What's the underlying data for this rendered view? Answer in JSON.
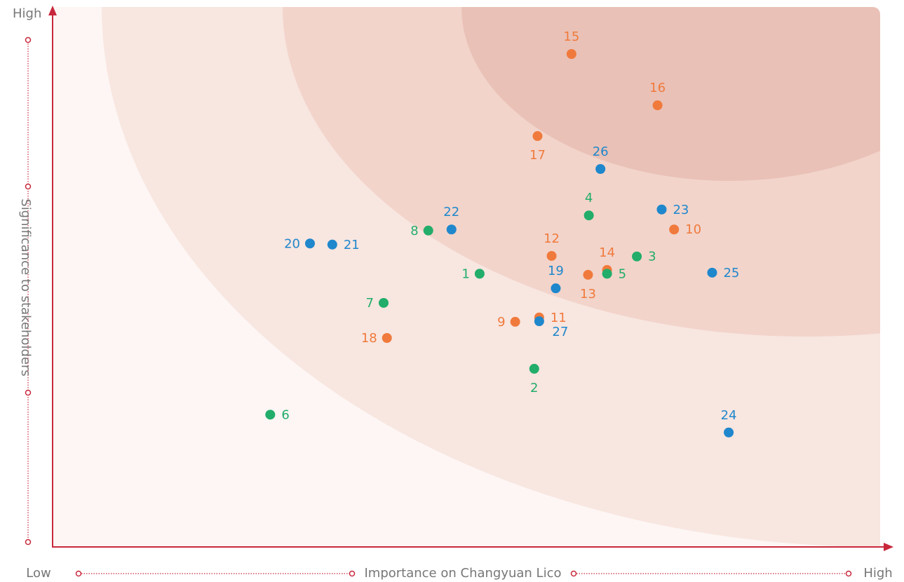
{
  "chart_data": {
    "type": "scatter",
    "x_label": "Importance on Changyuan Lico",
    "y_label": "Significance to stakeholders",
    "x_low": "Low",
    "x_high": "High",
    "y_high": "High",
    "xlim": [
      0,
      100
    ],
    "ylim": [
      0,
      100
    ],
    "series": [
      {
        "color": "#f07a3c",
        "labels": [
          "15",
          "16",
          "17",
          "10",
          "12",
          "14",
          "13",
          "9",
          "11",
          "18"
        ],
        "x": [
          62.7,
          73.1,
          58.6,
          75.1,
          60.3,
          67.0,
          64.7,
          55.9,
          58.8,
          40.4
        ],
        "values": [
          91.3,
          81.8,
          76.1,
          58.8,
          53.9,
          51.3,
          50.4,
          41.7,
          42.5,
          38.7
        ]
      },
      {
        "color": "#1f87cc",
        "labels": [
          "26",
          "23",
          "22",
          "20",
          "21",
          "25",
          "19",
          "27",
          "24"
        ],
        "x": [
          66.2,
          73.6,
          48.2,
          31.1,
          33.8,
          79.7,
          60.8,
          58.8,
          81.7
        ],
        "values": [
          70.0,
          62.5,
          58.8,
          56.2,
          56.0,
          50.8,
          47.9,
          41.8,
          21.2
        ]
      },
      {
        "color": "#22ad6a",
        "labels": [
          "4",
          "8",
          "3",
          "5",
          "1",
          "7",
          "2",
          "6"
        ],
        "x": [
          64.8,
          45.4,
          70.6,
          67.0,
          51.6,
          40.0,
          58.2,
          26.3
        ],
        "values": [
          61.4,
          58.6,
          53.8,
          50.6,
          50.6,
          45.2,
          33.0,
          24.5
        ]
      }
    ]
  }
}
